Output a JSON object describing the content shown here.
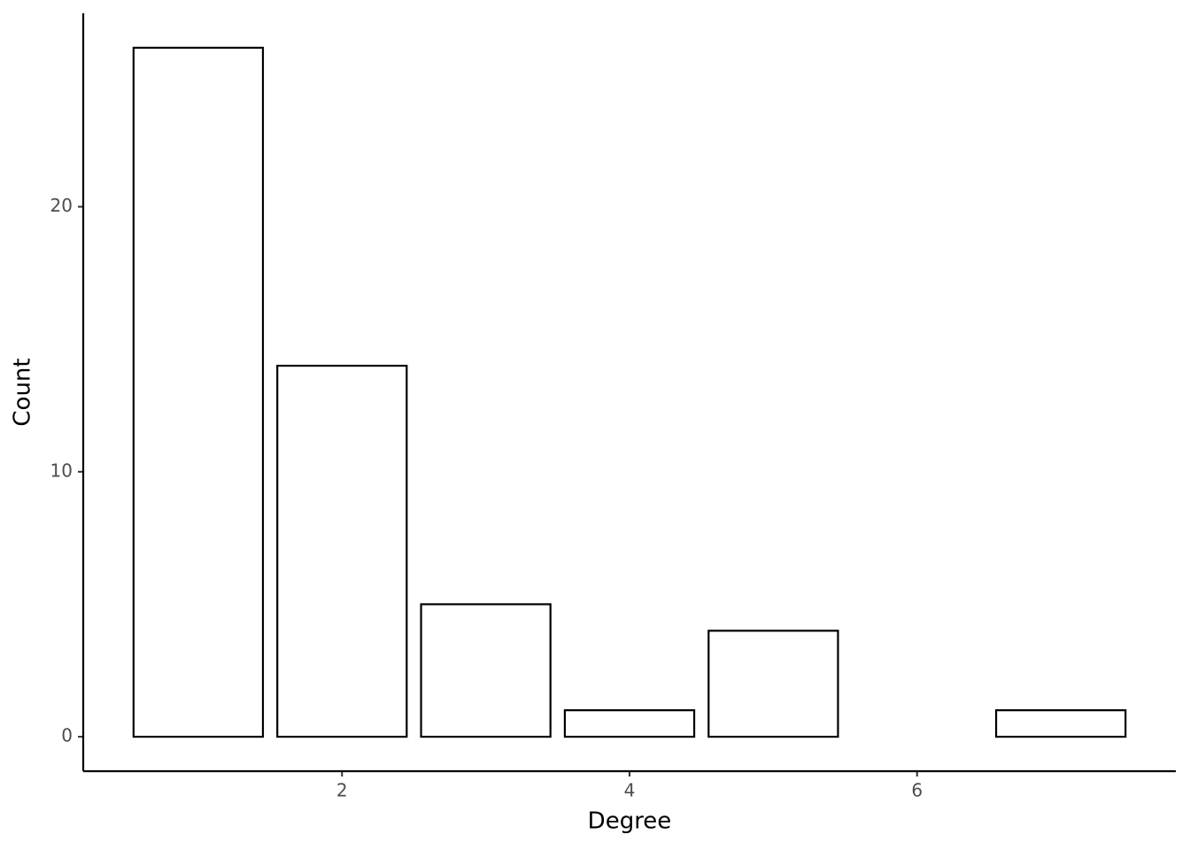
{
  "chart_data": {
    "type": "bar",
    "x_label": "Degree",
    "y_label": "Count",
    "x": [
      1,
      2,
      3,
      4,
      5,
      7
    ],
    "values": [
      26,
      14,
      5,
      1,
      4,
      1
    ],
    "color": "#ffffff",
    "edgecolor": "#000000",
    "xlim": [
      0.2,
      7.8
    ],
    "xticks": [
      2,
      4,
      6
    ],
    "ylim": [
      -1.3,
      27.3
    ],
    "yticks": [
      0,
      10,
      20
    ],
    "grid": false
  }
}
